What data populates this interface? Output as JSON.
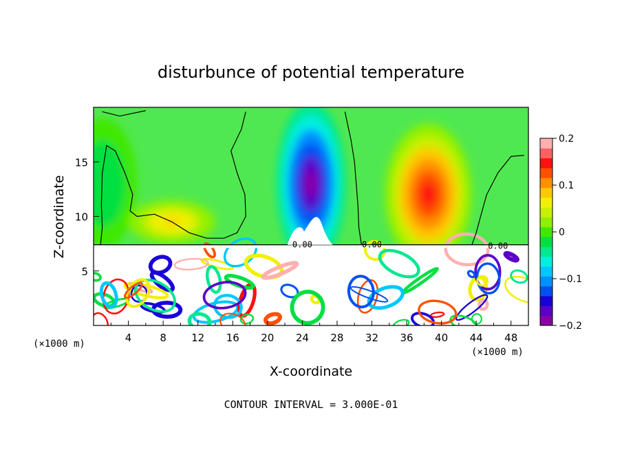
{
  "chart_data": {
    "type": "heatmap",
    "title": "disturbunce of potential temperature",
    "xlabel": "X-coordinate",
    "ylabel": "Z-coordinate",
    "x_unit": "(×1000 m)",
    "x_unit_right": "(×1000 m)",
    "xlim": [
      0,
      50
    ],
    "ylim": [
      0,
      20
    ],
    "x_ticks": [
      4,
      8,
      12,
      16,
      20,
      24,
      28,
      32,
      36,
      40,
      44,
      48
    ],
    "y_ticks": [
      5,
      10,
      15
    ],
    "colorbar": {
      "range": [
        -0.2,
        0.2
      ],
      "tick_values": [
        0.2,
        0.1,
        0,
        -0.1,
        -0.2
      ],
      "tick_labels": [
        "0.2",
        "0.1",
        "0",
        "−0.1",
        "−0.2"
      ],
      "colors": [
        "#8a00a8",
        "#5a00c8",
        "#1a00d8",
        "#0050f0",
        "#0090ff",
        "#00c8ff",
        "#00f0e0",
        "#00e890",
        "#00e040",
        "#40e800",
        "#90f000",
        "#c8f000",
        "#f0f000",
        "#ffc800",
        "#ff9000",
        "#ff5000",
        "#ff1010",
        "#ff6060",
        "#ffb0b0"
      ]
    },
    "contour_labels": [
      {
        "text": "0.00",
        "x": 24.0,
        "z": 7.4
      },
      {
        "text": "0.00",
        "x": 32.0,
        "z": 7.4
      },
      {
        "text": "0.00",
        "x": 46.5,
        "z": 7.3
      }
    ],
    "contour_interval": "CONTOUR INTERVAL = 3.000E-01",
    "features": [
      {
        "name": "cold-anomaly",
        "x": 25.0,
        "z": 13.0,
        "rx": 4.0,
        "rz": 7.5,
        "value": -0.2
      },
      {
        "name": "warm-anomaly",
        "x": 38.5,
        "z": 12.0,
        "rx": 5.0,
        "rz": 6.5,
        "value": 0.15
      },
      {
        "name": "weak-warm-left",
        "x": 9.0,
        "z": 9.5,
        "rx": 5.0,
        "rz": 2.0,
        "value": 0.08
      },
      {
        "name": "weak-cool-edges",
        "x": 1.0,
        "z": 13.0,
        "rx": 4.0,
        "rz": 6.0,
        "value": -0.03
      }
    ]
  }
}
